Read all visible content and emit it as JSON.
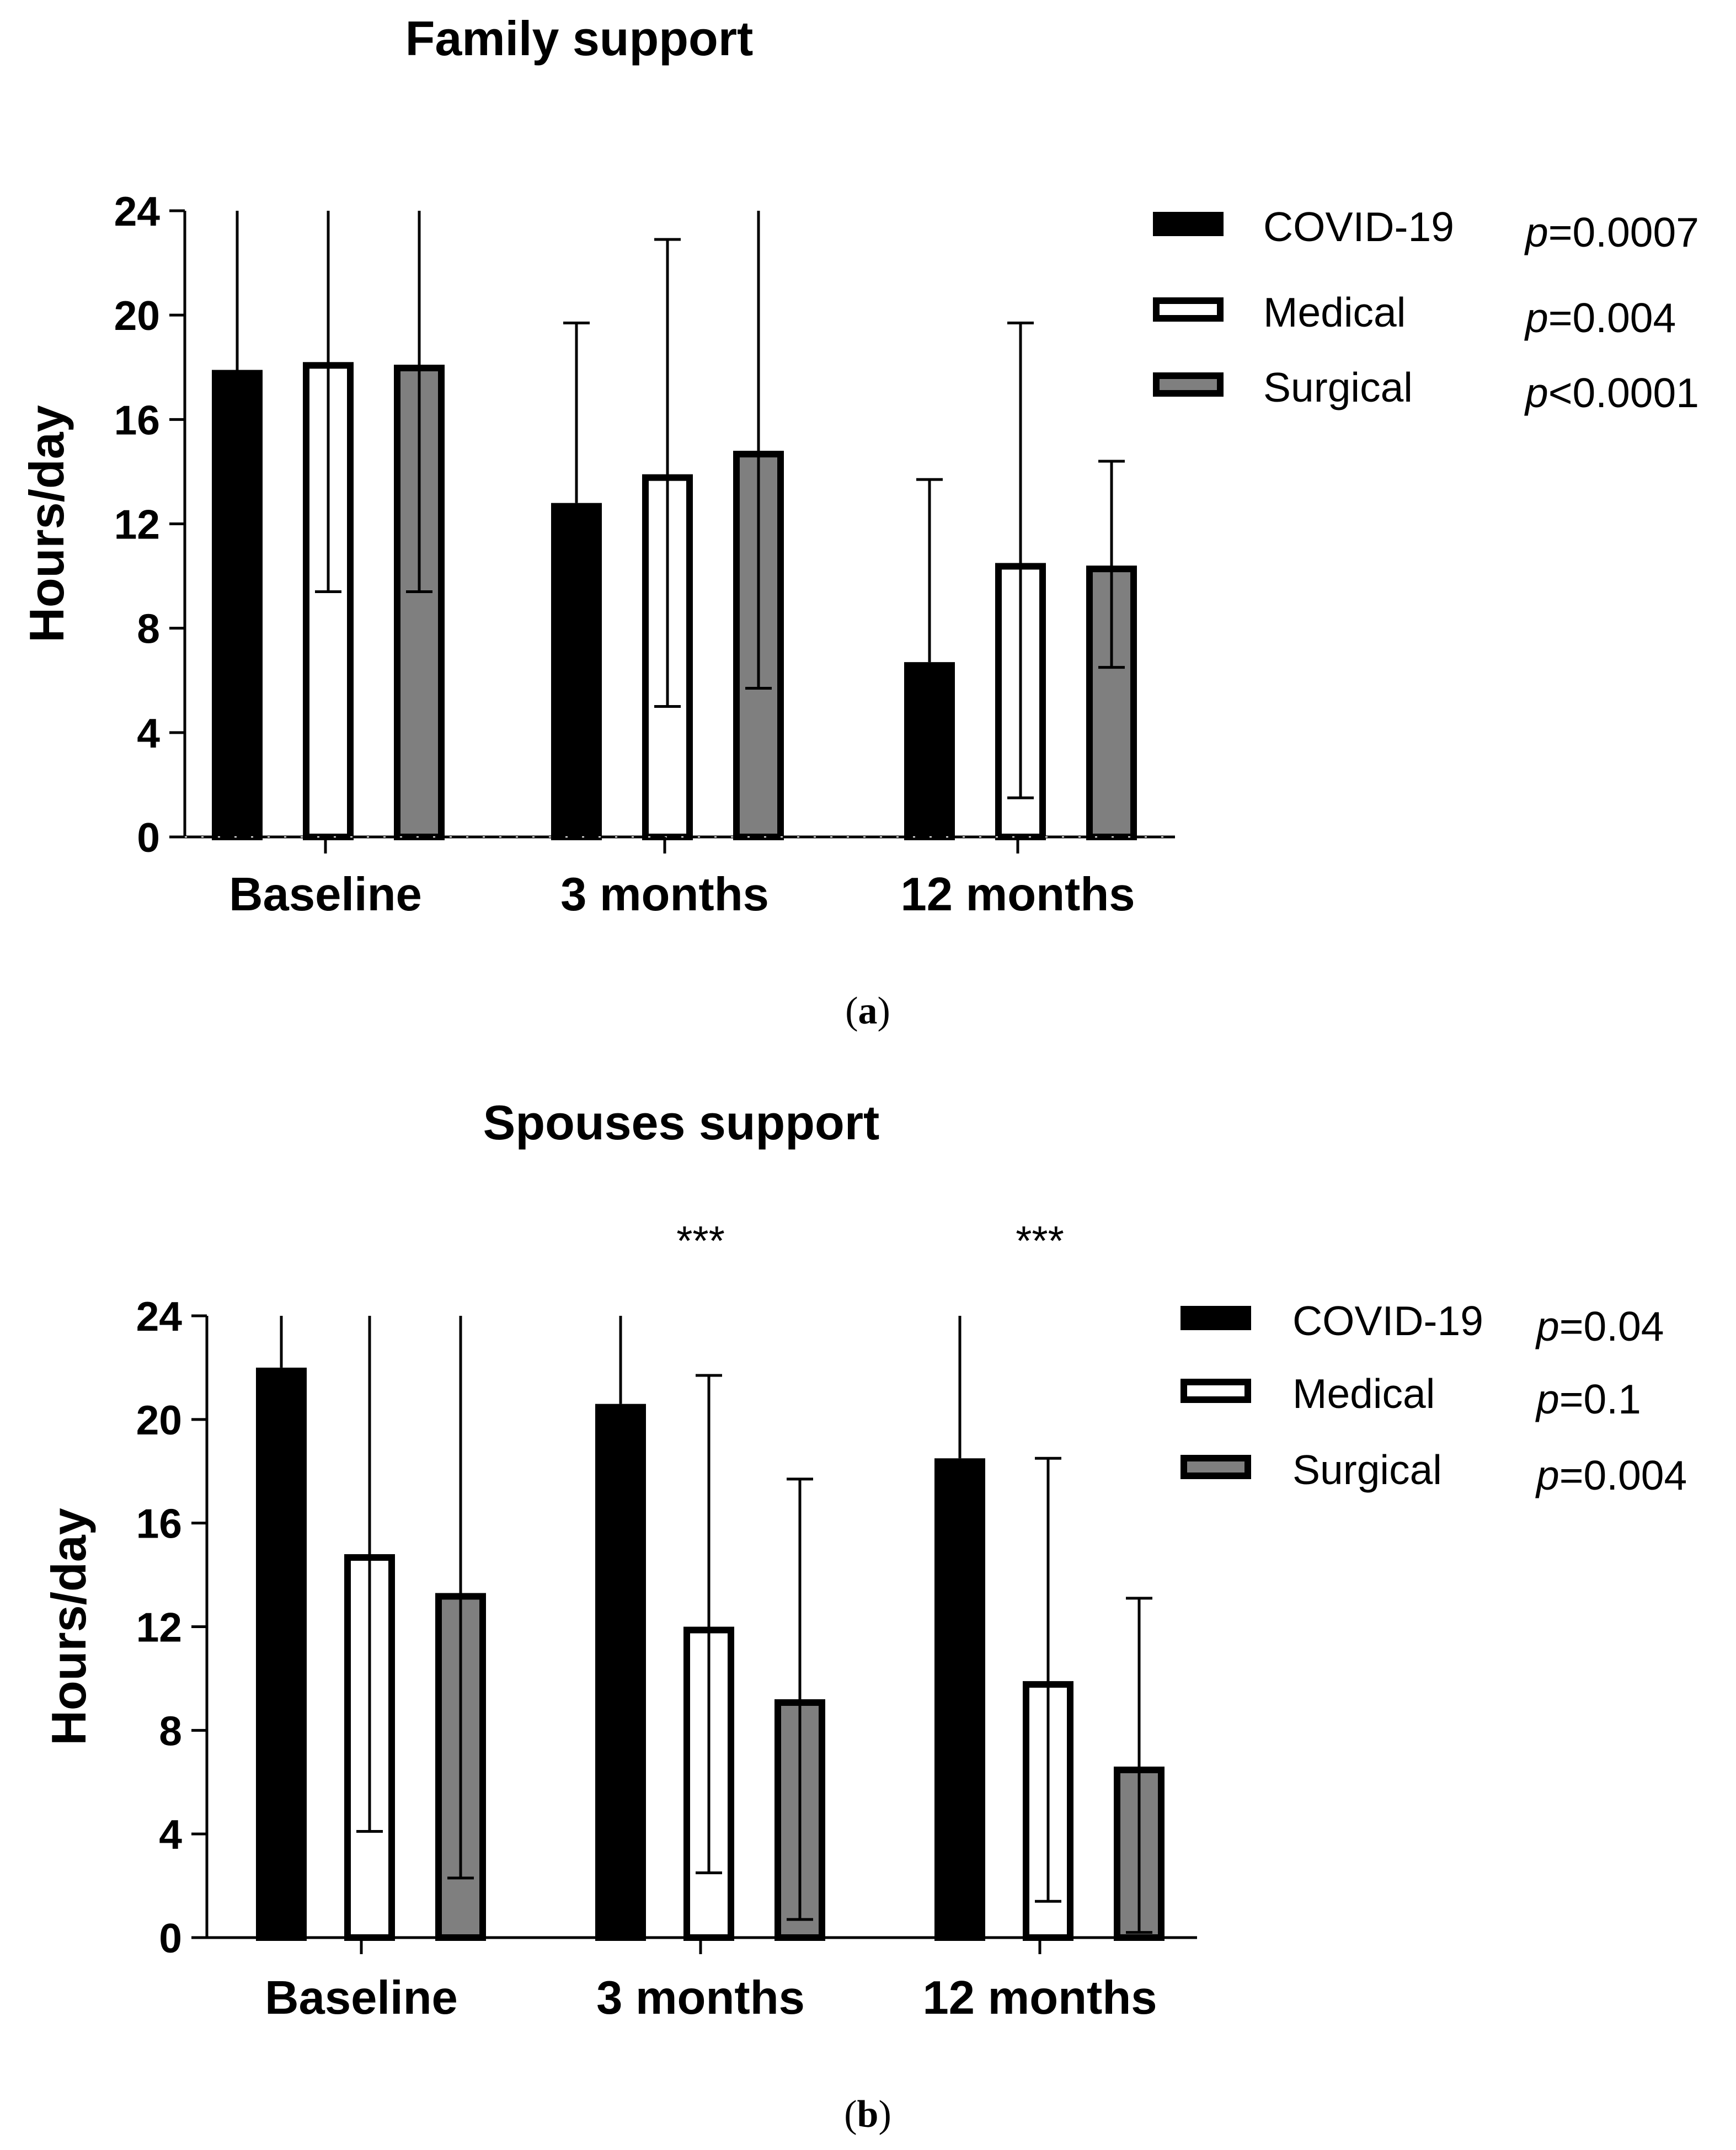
{
  "colors": {
    "covid": "#000000",
    "medical": "#ffffff",
    "surgical": "#7f7f7f",
    "outline": "#000000"
  },
  "chart_data": [
    {
      "type": "bar",
      "panel_label_prefix": "(",
      "panel_label_letter": "a",
      "panel_label_suffix": ")",
      "title": "Family support",
      "ylabel": "Hours/day",
      "xlabel": "",
      "ylim": [
        0,
        24
      ],
      "yticks": [
        0,
        4,
        8,
        12,
        16,
        20,
        24
      ],
      "categories": [
        "Baseline",
        "3 months",
        "12 months"
      ],
      "series": [
        {
          "name": "COVID-19",
          "p_prefix": "p",
          "p_value": "=0.0007",
          "values": [
            17.9,
            12.8,
            6.7
          ],
          "err_low": [
            null,
            12.8,
            6.7
          ],
          "err_high": [
            24,
            19.7,
            13.7
          ]
        },
        {
          "name": "Medical",
          "p_prefix": "p",
          "p_value": "=0.004",
          "values": [
            18.2,
            13.9,
            10.5
          ],
          "err_low": [
            9.4,
            5.0,
            1.5
          ],
          "err_high": [
            24,
            22.9,
            19.7
          ]
        },
        {
          "name": "Surgical",
          "p_prefix": "p",
          "p_value": "<0.0001",
          "values": [
            18.1,
            14.8,
            10.4
          ],
          "err_low": [
            9.4,
            5.7,
            6.5
          ],
          "err_high": [
            24,
            24,
            14.4
          ]
        }
      ],
      "annotations": [],
      "legend_position": "top-right",
      "grid": false
    },
    {
      "type": "bar",
      "panel_label_prefix": "(",
      "panel_label_letter": "b",
      "panel_label_suffix": ")",
      "title": "Spouses support",
      "ylabel": "Hours/day",
      "xlabel": "",
      "ylim": [
        0,
        24
      ],
      "yticks": [
        0,
        4,
        8,
        12,
        16,
        20,
        24
      ],
      "categories": [
        "Baseline",
        "3 months",
        "12 months"
      ],
      "series": [
        {
          "name": "COVID-19",
          "p_prefix": "p",
          "p_value": "=0.04",
          "values": [
            22.0,
            20.6,
            18.5
          ],
          "err_low": [
            null,
            null,
            null
          ],
          "err_high": [
            24,
            24,
            24
          ]
        },
        {
          "name": "Medical",
          "p_prefix": "p",
          "p_value": "=0.1",
          "values": [
            14.8,
            12.0,
            9.9
          ],
          "err_low": [
            4.1,
            2.5,
            1.4
          ],
          "err_high": [
            24,
            21.7,
            18.5
          ]
        },
        {
          "name": "Surgical",
          "p_prefix": "p",
          "p_value": "=0.004",
          "values": [
            13.3,
            9.2,
            6.6
          ],
          "err_low": [
            2.3,
            0.7,
            0.2
          ],
          "err_high": [
            24,
            17.7,
            13.1
          ]
        }
      ],
      "annotations": [
        {
          "category": "3 months",
          "text": "***"
        },
        {
          "category": "12 months",
          "text": "***"
        }
      ],
      "legend_position": "top-right",
      "grid": false
    }
  ]
}
